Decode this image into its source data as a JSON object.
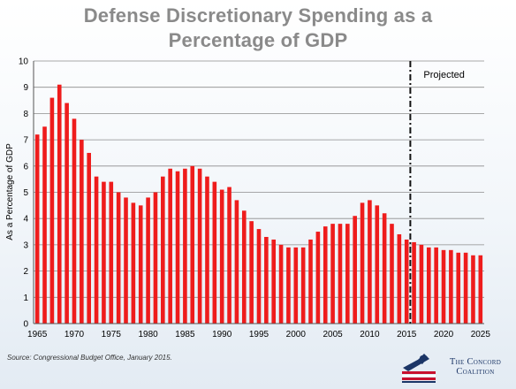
{
  "title": {
    "line1": "Defense Discretionary Spending as a",
    "line2": "Percentage of GDP"
  },
  "source": "Source: Congressional Budget Office, January 2015.",
  "logo": {
    "text_line1": "The Concord",
    "text_line2": "Coalition",
    "icon": "minuteman-flag-icon"
  },
  "colors": {
    "bar": "#ee1c1c",
    "grid": "#8c8c8c",
    "projection_line": "#111111",
    "title": "#8a8a8a",
    "logo": "#1b3566"
  },
  "chart_data": {
    "type": "bar",
    "title": "Defense Discretionary Spending as a Percentage of GDP",
    "xlabel": "",
    "ylabel": "As a Percentage of GDP",
    "ylim": [
      0,
      10
    ],
    "yticks": [
      0,
      1,
      2,
      3,
      4,
      5,
      6,
      7,
      8,
      9,
      10
    ],
    "xticks": [
      1965,
      1970,
      1975,
      1980,
      1985,
      1990,
      1995,
      2000,
      2005,
      2010,
      2015,
      2020,
      2025
    ],
    "grid": true,
    "projection": {
      "year": 2015,
      "label": "Projected"
    },
    "x": [
      1965,
      1966,
      1967,
      1968,
      1969,
      1970,
      1971,
      1972,
      1973,
      1974,
      1975,
      1976,
      1977,
      1978,
      1979,
      1980,
      1981,
      1982,
      1983,
      1984,
      1985,
      1986,
      1987,
      1988,
      1989,
      1990,
      1991,
      1992,
      1993,
      1994,
      1995,
      1996,
      1997,
      1998,
      1999,
      2000,
      2001,
      2002,
      2003,
      2004,
      2005,
      2006,
      2007,
      2008,
      2009,
      2010,
      2011,
      2012,
      2013,
      2014,
      2015,
      2016,
      2017,
      2018,
      2019,
      2020,
      2021,
      2022,
      2023,
      2024,
      2025
    ],
    "values": [
      7.2,
      7.5,
      8.6,
      9.1,
      8.4,
      7.8,
      7.0,
      6.5,
      5.6,
      5.4,
      5.4,
      5.0,
      4.8,
      4.6,
      4.5,
      4.8,
      5.0,
      5.6,
      5.9,
      5.8,
      5.9,
      6.0,
      5.9,
      5.6,
      5.4,
      5.1,
      5.2,
      4.7,
      4.3,
      3.9,
      3.6,
      3.3,
      3.2,
      3.0,
      2.9,
      2.9,
      2.9,
      3.2,
      3.5,
      3.7,
      3.8,
      3.8,
      3.8,
      4.1,
      4.6,
      4.7,
      4.5,
      4.2,
      3.8,
      3.4,
      3.2,
      3.1,
      3.0,
      2.9,
      2.9,
      2.8,
      2.8,
      2.7,
      2.7,
      2.6,
      2.6
    ]
  }
}
